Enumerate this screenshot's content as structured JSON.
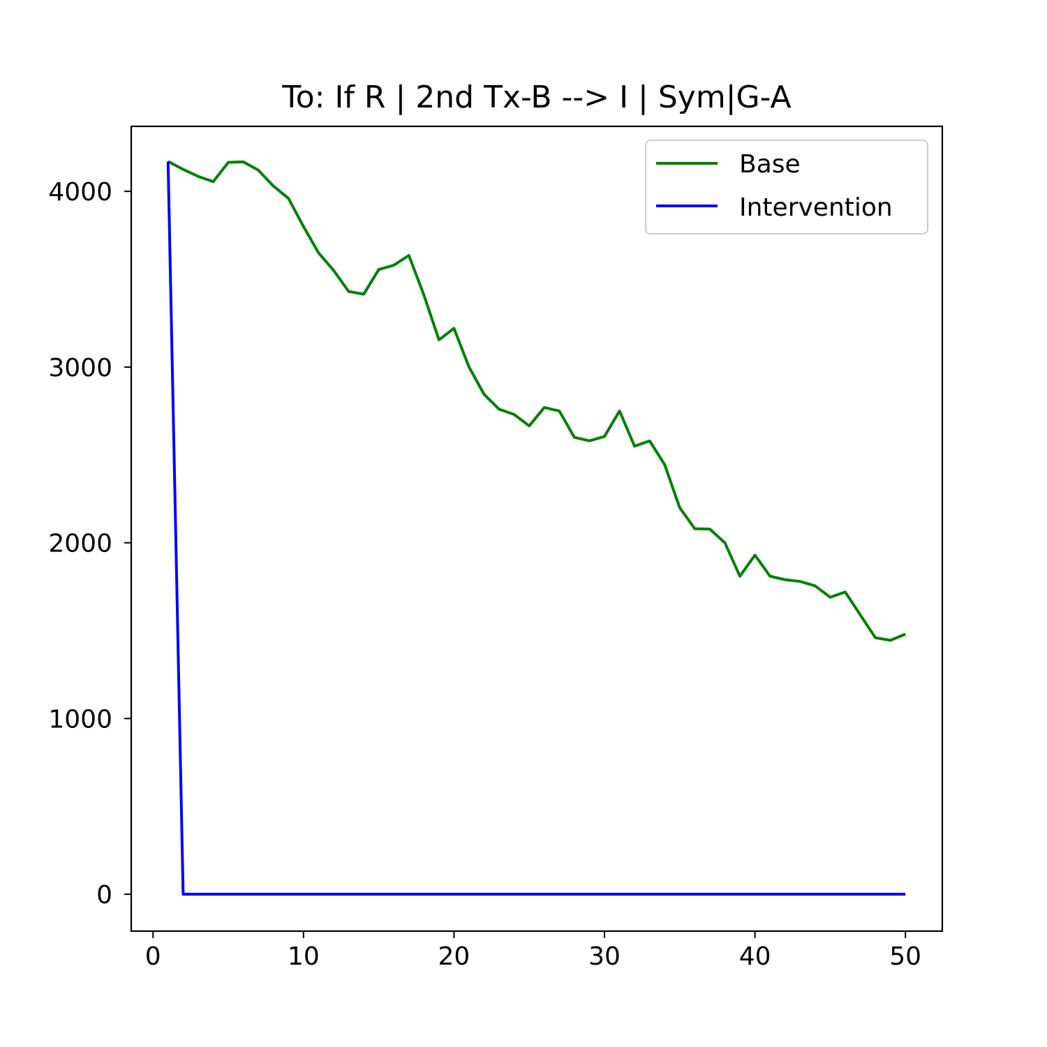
{
  "chart_data": {
    "type": "line",
    "title": "To: If R | 2nd Tx-B  --> I | Sym|G-A",
    "xlabel": "",
    "ylabel": "",
    "xlim": [
      -1.45,
      52.45
    ],
    "ylim": [
      -210,
      4370
    ],
    "xticks": [
      0,
      10,
      20,
      30,
      40,
      50
    ],
    "yticks": [
      0,
      1000,
      2000,
      3000,
      4000
    ],
    "grid": false,
    "legend_position": "top-right",
    "series": [
      {
        "name": "Base",
        "color": "#008000",
        "x": [
          1,
          2,
          3,
          4,
          5,
          6,
          7,
          8,
          9,
          10,
          11,
          12,
          13,
          14,
          15,
          16,
          17,
          18,
          19,
          20,
          21,
          22,
          23,
          24,
          25,
          26,
          27,
          28,
          29,
          30,
          31,
          32,
          33,
          34,
          35,
          36,
          37,
          38,
          39,
          40,
          41,
          42,
          43,
          44,
          45,
          46,
          47,
          48,
          49,
          50
        ],
        "y": [
          4170,
          4125,
          4085,
          4055,
          4165,
          4168,
          4120,
          4030,
          3960,
          3800,
          3650,
          3550,
          3430,
          3415,
          3555,
          3580,
          3635,
          3410,
          3155,
          3220,
          3000,
          2845,
          2760,
          2730,
          2665,
          2770,
          2750,
          2600,
          2580,
          2605,
          2750,
          2550,
          2580,
          2445,
          2200,
          2080,
          2078,
          2000,
          1810,
          1930,
          1810,
          1790,
          1780,
          1755,
          1690,
          1720,
          1590,
          1460,
          1445,
          1480
        ]
      },
      {
        "name": "Intervention",
        "color": "#0000ff",
        "x": [
          1,
          2,
          3,
          4,
          5,
          6,
          7,
          8,
          9,
          10,
          11,
          12,
          13,
          14,
          15,
          16,
          17,
          18,
          19,
          20,
          21,
          22,
          23,
          24,
          25,
          26,
          27,
          28,
          29,
          30,
          31,
          32,
          33,
          34,
          35,
          36,
          37,
          38,
          39,
          40,
          41,
          42,
          43,
          44,
          45,
          46,
          47,
          48,
          49,
          50
        ],
        "y": [
          4170,
          0,
          0,
          0,
          0,
          0,
          0,
          0,
          0,
          0,
          0,
          0,
          0,
          0,
          0,
          0,
          0,
          0,
          0,
          0,
          0,
          0,
          0,
          0,
          0,
          0,
          0,
          0,
          0,
          0,
          0,
          0,
          0,
          0,
          0,
          0,
          0,
          0,
          0,
          0,
          0,
          0,
          0,
          0,
          0,
          0,
          0,
          0,
          0,
          0
        ]
      }
    ]
  }
}
